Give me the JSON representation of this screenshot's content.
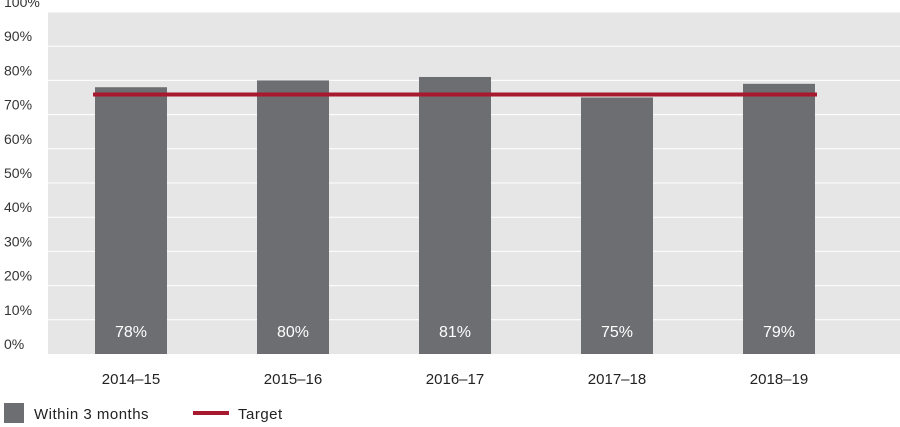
{
  "chart_data": {
    "type": "bar",
    "categories": [
      "2014–15",
      "2015–16",
      "2016–17",
      "2017–18",
      "2018–19"
    ],
    "series": [
      {
        "name": "Within 3 months",
        "values": [
          78,
          80,
          81,
          75,
          79
        ]
      }
    ],
    "data_labels": [
      "78%",
      "80%",
      "81%",
      "75%",
      "79%"
    ],
    "target": {
      "name": "Target",
      "value": 75
    },
    "ylim": [
      0,
      100
    ],
    "yticks": [
      0,
      10,
      20,
      30,
      40,
      50,
      60,
      70,
      80,
      90,
      100
    ],
    "ytick_labels": [
      "0%",
      "10%",
      "20%",
      "30%",
      "40%",
      "50%",
      "60%",
      "70%",
      "80%",
      "90%",
      "100%"
    ],
    "grid": true,
    "legend_position": "bottom-left",
    "colors": {
      "bar": "#6d6e71",
      "target": "#a6192e",
      "plot_background": "#e6e6e7",
      "gridline": "#ffffff"
    }
  }
}
